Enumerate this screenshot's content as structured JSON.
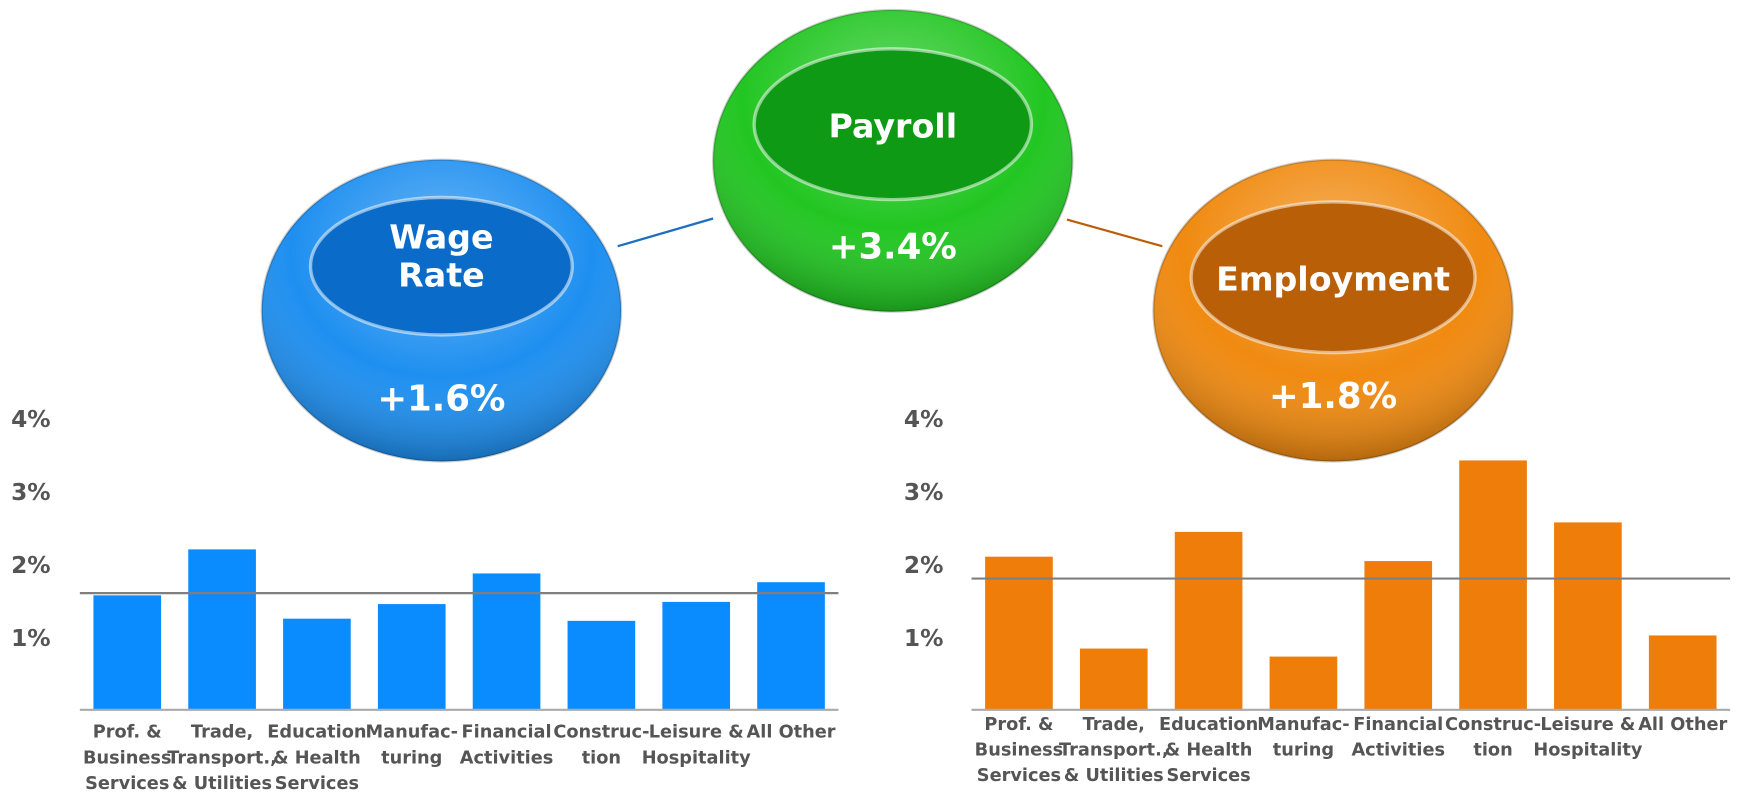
{
  "bubbles": [
    {
      "title": "Wage Rate",
      "label": "+1.6%",
      "color": "#1e8ff0",
      "inner": "#0a6cc8"
    },
    {
      "title": "Payroll",
      "label": "+3.4%",
      "color": "#22c622",
      "inner": "#0f9a16"
    },
    {
      "title": "Employment",
      "label": "+1.8%",
      "color": "#f08a10",
      "inner": "#b85f08"
    }
  ],
  "chart_data": [
    {
      "type": "bar",
      "categories": [
        "Prof. &\nBusiness\nServices",
        "Trade,\nTransport.,\n& Utilities",
        "Education\n& Health\nServices",
        "Manufac-\nturing",
        "Financial\nActivities",
        "Construc-\ntion",
        "Leisure &\nHospitality",
        "All Other"
      ],
      "values": [
        1.57,
        2.2,
        1.25,
        1.45,
        1.87,
        1.22,
        1.48,
        1.75
      ],
      "color": "#0a8cff",
      "reference": 1.6,
      "ylim": [
        0,
        4
      ],
      "yticks": [
        {
          "value": 1,
          "label": "1%"
        },
        {
          "value": 2,
          "label": "2%"
        },
        {
          "value": 3,
          "label": "3%"
        },
        {
          "value": 4,
          "label": "4%"
        }
      ]
    },
    {
      "type": "bar",
      "categories": [
        "Prof. &\nBusiness\nServices",
        "Trade,\nTransport.,\n& Utilities",
        "Education\n& Health\nServices",
        "Manufac-\nturing",
        "Financial\nActivities",
        "Construc-\ntion",
        "Leisure &\nHospitality",
        "All Other"
      ],
      "values": [
        2.1,
        0.84,
        2.44,
        0.73,
        2.04,
        3.42,
        2.57,
        1.02
      ],
      "color": "#ef7d0a",
      "reference": 1.8,
      "ylim": [
        0,
        4
      ],
      "yticks": [
        {
          "value": 1,
          "label": "1%"
        },
        {
          "value": 2,
          "label": "2%"
        },
        {
          "value": 3,
          "label": "3%"
        },
        {
          "value": 4,
          "label": "4%"
        }
      ]
    }
  ]
}
